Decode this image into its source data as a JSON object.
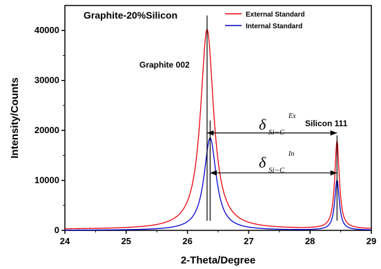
{
  "chart_data": {
    "type": "line",
    "title": "Graphite-20%Silicon",
    "xlabel": "2-Theta/Degree",
    "ylabel": "Intensity/Counts",
    "xlim": [
      24,
      29
    ],
    "ylim": [
      0,
      45000
    ],
    "x_ticks": [
      "24",
      "25",
      "26",
      "27",
      "28",
      "29"
    ],
    "y_ticks": [
      "0",
      "10000",
      "20000",
      "30000",
      "40000"
    ],
    "grid": false,
    "legend_position": "top-right",
    "series": [
      {
        "name": "External Standard",
        "color": "#e8000b",
        "peaks": [
          {
            "center": 26.32,
            "height": 40000,
            "hwhm": 0.13
          },
          {
            "center": 28.44,
            "height": 17500,
            "hwhm": 0.045
          }
        ],
        "baseline": 200
      },
      {
        "name": "Internal Standard",
        "color": "#0000cc",
        "peaks": [
          {
            "center": 26.37,
            "height": 18500,
            "hwhm": 0.12
          },
          {
            "center": 28.44,
            "height": 10000,
            "hwhm": 0.045
          }
        ],
        "baseline": 0
      }
    ],
    "annotations": {
      "graphite_label": "Graphite 002",
      "silicon_label": "Silicon 111",
      "delta_symbol": "δ",
      "delta_sub": "Si−C",
      "delta_ex_sup": "Ex",
      "delta_in_sup": "In"
    },
    "reference_lines": [
      {
        "x": 26.32,
        "y_top": 43000
      },
      {
        "x": 26.37,
        "y_top": 22000
      },
      {
        "x": 28.44,
        "y_top": 19000
      }
    ],
    "arrows": [
      {
        "label": "ex",
        "x1": 26.32,
        "x2": 28.44,
        "y": 19500
      },
      {
        "label": "in",
        "x1": 26.37,
        "x2": 28.44,
        "y": 11500
      }
    ]
  }
}
